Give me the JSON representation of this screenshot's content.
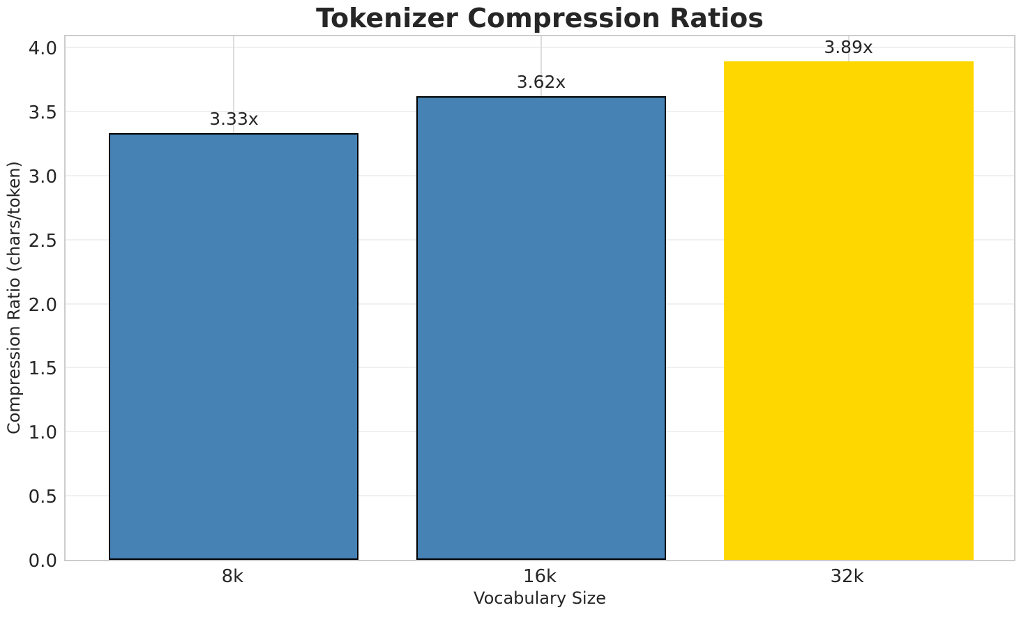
{
  "chart_data": {
    "type": "bar",
    "title": "Tokenizer Compression Ratios",
    "xlabel": "Vocabulary Size",
    "ylabel": "Compression Ratio (chars/token)",
    "categories": [
      "8k",
      "16k",
      "32k"
    ],
    "values": [
      3.33,
      3.62,
      3.89
    ],
    "value_labels": [
      "3.33x",
      "3.62x",
      "3.89x"
    ],
    "bar_colors": [
      "#4682B4",
      "#4682B4",
      "#FFD700"
    ],
    "bar_edge_colors": [
      "#000000",
      "#000000",
      "none"
    ],
    "ylim": [
      0,
      4.11
    ],
    "yticks": [
      0.0,
      0.5,
      1.0,
      1.5,
      2.0,
      2.5,
      3.0,
      3.5,
      4.0
    ],
    "ytick_labels": [
      "0.0",
      "0.5",
      "1.0",
      "1.5",
      "2.0",
      "2.5",
      "3.0",
      "3.5",
      "4.0"
    ],
    "grid": true,
    "legend": false,
    "layout": {
      "bar_width_frac": 0.2625,
      "bar_center_fracs": [
        0.177,
        0.5,
        0.823
      ]
    },
    "colors": {
      "grid_horizontal": "#f0f0f0",
      "grid_vertical": "#dcdcdc",
      "spine": "#cccccc",
      "text": "#262626"
    }
  }
}
